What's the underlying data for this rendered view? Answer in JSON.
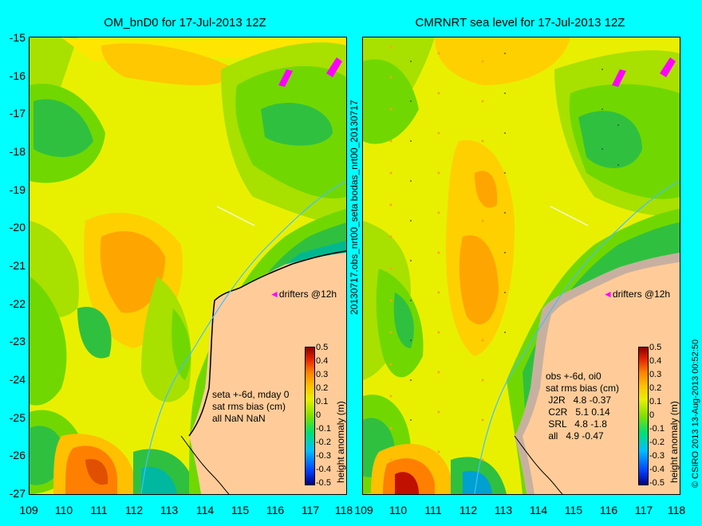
{
  "left_panel": {
    "title": "OM_bnD0 for 17-Jul-2013 12Z",
    "stats": "seta +-6d, mday 0\nsat rms bias (cm)\nall NaN NaN",
    "drifters": "drifters @12h"
  },
  "right_panel": {
    "title": "CMRNRT sea level  for 17-Jul-2013 12Z",
    "stats": "obs +-6d, oi0\nsat rms bias (cm)\n J2R   4.8 -0.37\n C2R   5.1 0.14\n SRL   4.8 -1.8\n all   4.9 -0.47",
    "drifters": "drifters @12h"
  },
  "y_ticks": [
    "-15",
    "-16",
    "-17",
    "-18",
    "-19",
    "-20",
    "-21",
    "-22",
    "-23",
    "-24",
    "-25",
    "-26",
    "-27"
  ],
  "x_ticks_left": [
    "109",
    "110",
    "111",
    "112",
    "113",
    "114",
    "115",
    "116",
    "117",
    "118"
  ],
  "x_ticks_right": [
    "109",
    "110",
    "111",
    "112",
    "113",
    "114",
    "115",
    "116",
    "117",
    "118"
  ],
  "center_label": "20130717.obs_nrt00_seta     bodas_nrt00_20130717",
  "copyright": "© CSIRO 2013   13-Aug-2013 00:52:50",
  "colorbar": {
    "title": "height anomaly (m)",
    "labels": [
      "0.5",
      "0.4",
      "0.3",
      "0.2",
      "0.1",
      "0",
      "-0.1",
      "-0.2",
      "-0.3",
      "-0.4",
      "-0.5"
    ]
  },
  "colors": {
    "background": "#00ffff",
    "land": "#ffcc99",
    "drifter": "#ff00ff",
    "isobath": "#40c0ff"
  }
}
